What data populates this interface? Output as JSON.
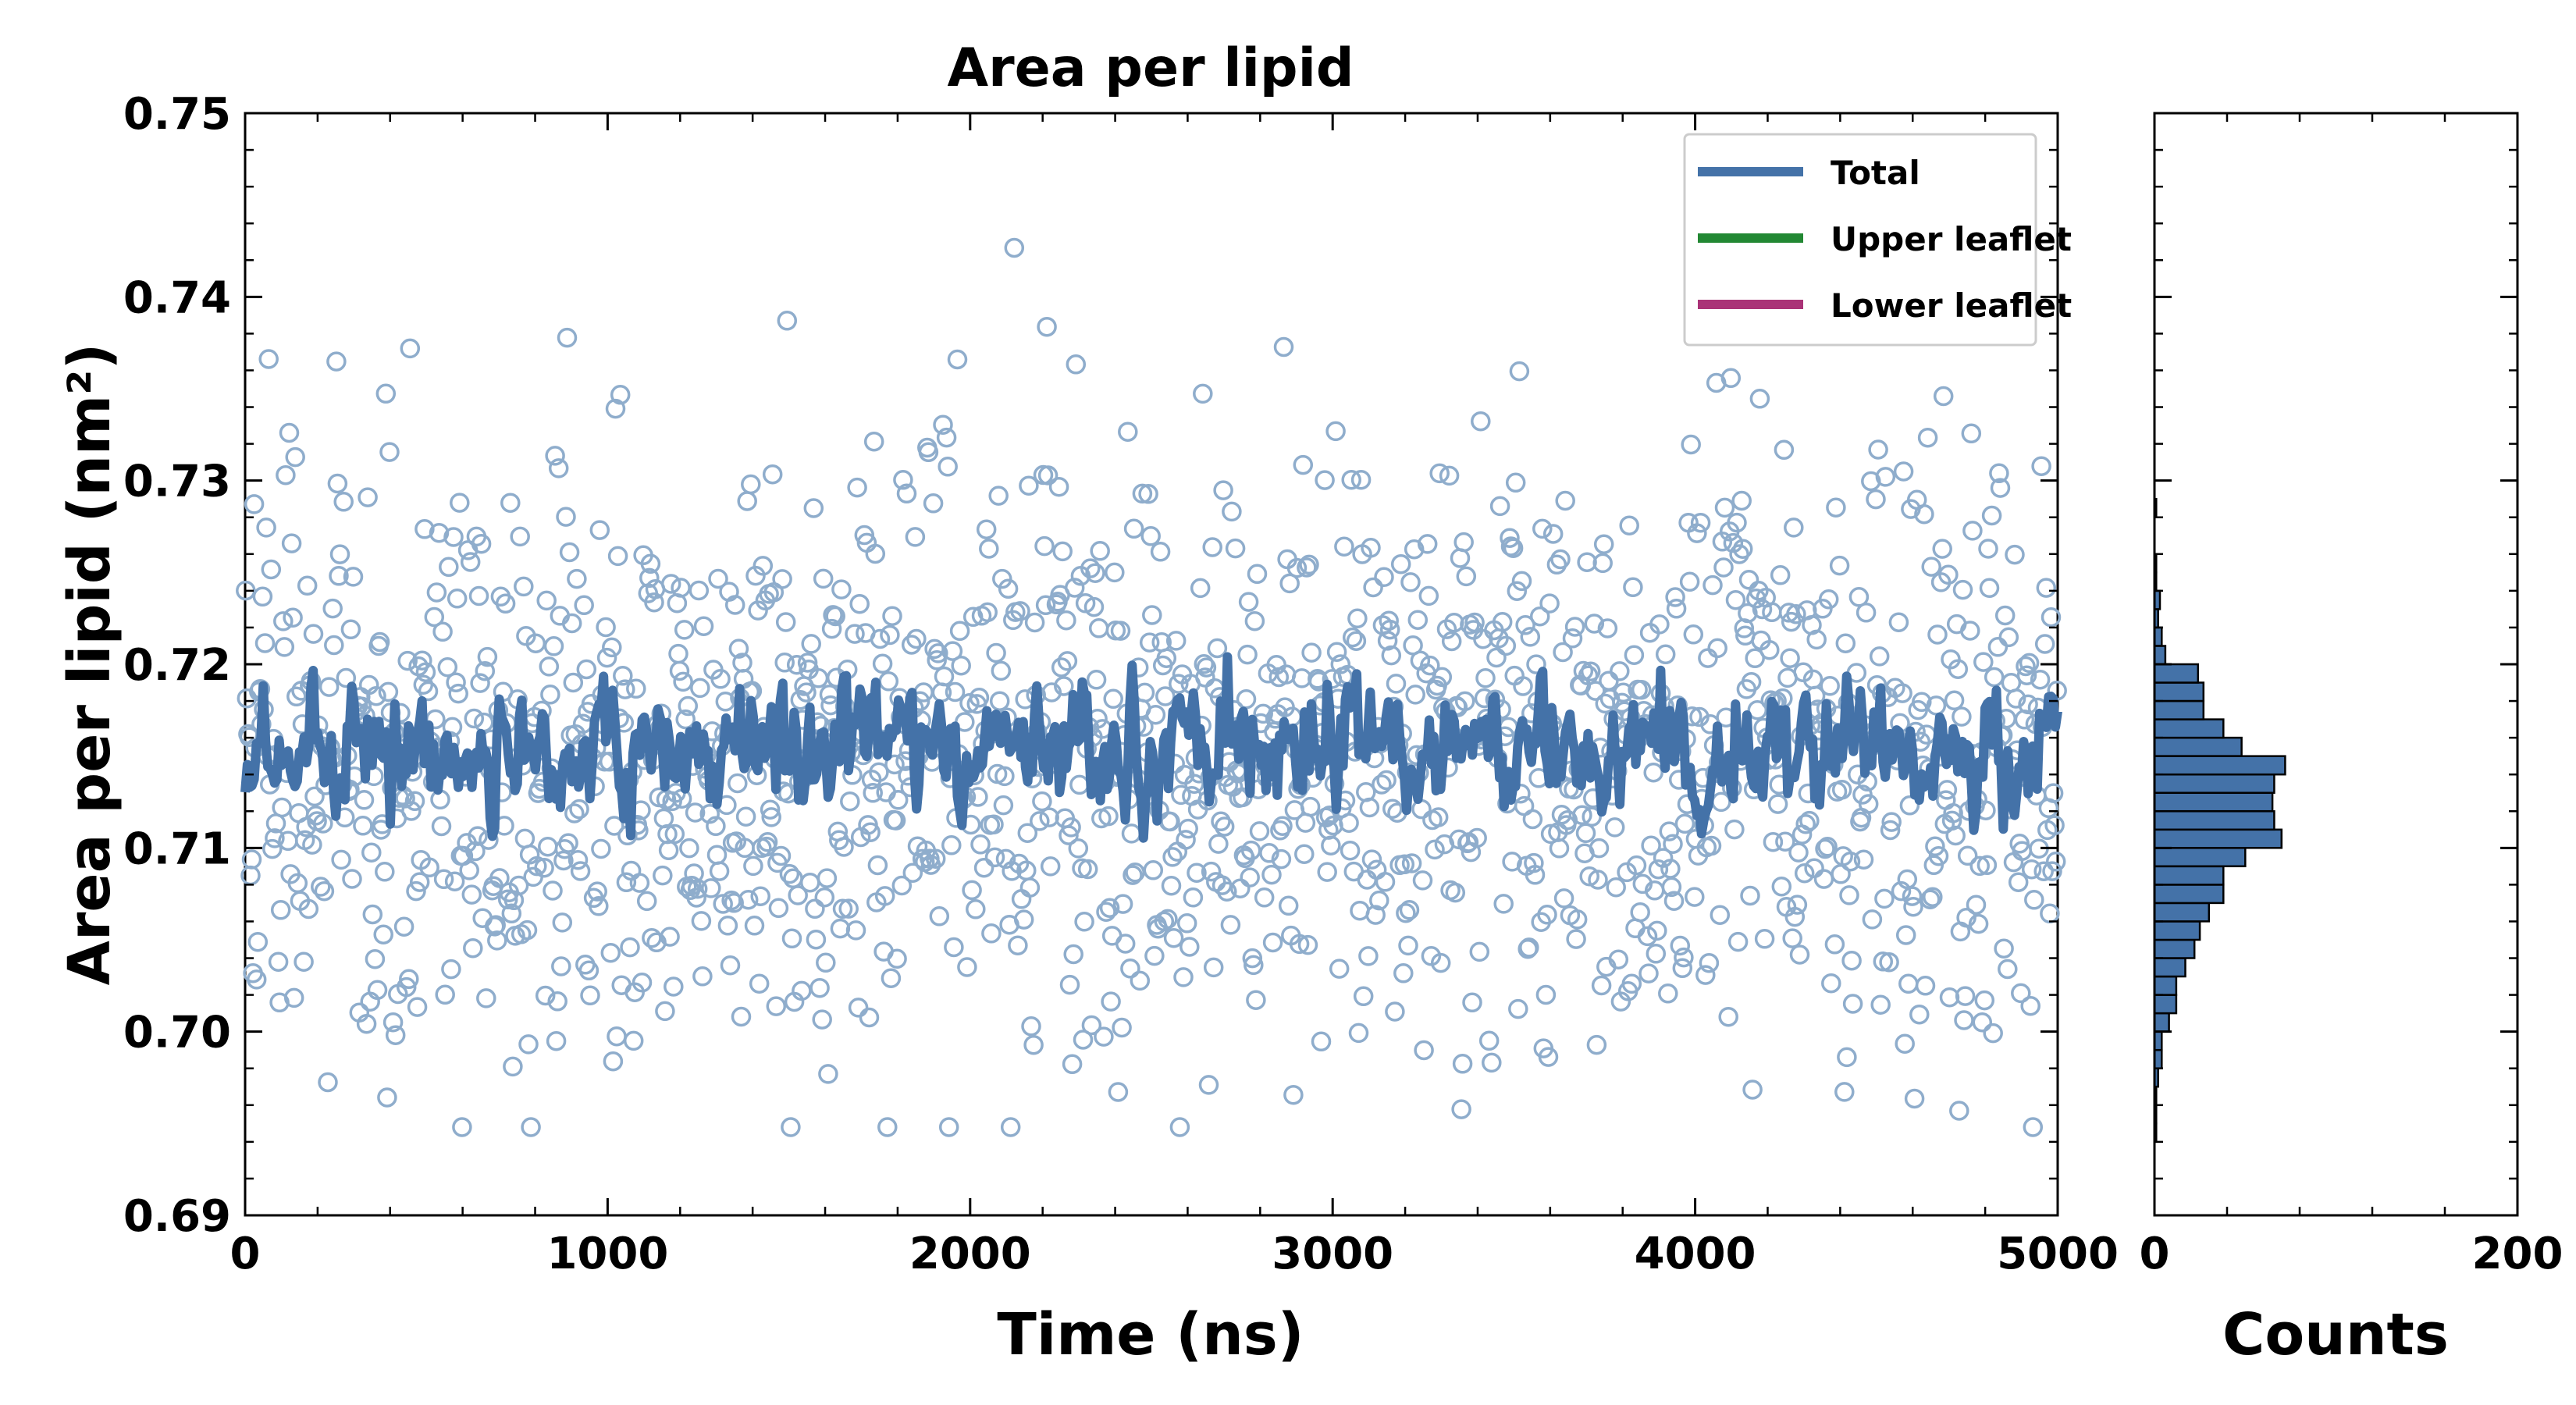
{
  "colors": {
    "total": "#4472a8",
    "upper": "#228833",
    "lower": "#aa3377",
    "scatter": "#8fadcc",
    "hist_fill": "#4472a8",
    "hist_edge": "#000000"
  },
  "chart_data": [
    {
      "type": "scatter",
      "title": "Area per lipid",
      "xlabel": "Time (ns)",
      "ylabel": "Area per lipid (nm²)",
      "xlim": [
        0,
        5000
      ],
      "ylim": [
        0.69,
        0.75
      ],
      "x_ticks": [
        "0",
        "1000",
        "2000",
        "3000",
        "4000",
        "5000"
      ],
      "y_ticks": [
        "0.69",
        "0.70",
        "0.71",
        "0.72",
        "0.73",
        "0.74",
        "0.75"
      ],
      "legend": {
        "placement": "top-right",
        "entries": [
          "Total",
          "Upper leaflet",
          "Lower leaflet"
        ]
      },
      "series": [
        {
          "name": "Total",
          "style": "line",
          "n_points": 800,
          "mean": 0.7155,
          "std": 0.0025,
          "min": 0.708,
          "max": 0.723
        },
        {
          "name": "scatter",
          "style": "open-circle",
          "n_points": 1500,
          "mean": 0.715,
          "std": 0.008,
          "min": 0.6948,
          "max": 0.7433
        }
      ]
    },
    {
      "type": "bar",
      "orientation": "horizontal",
      "xlabel": "Counts",
      "xlim": [
        0,
        200
      ],
      "x_ticks": [
        "0",
        "200"
      ],
      "ylim": [
        0.69,
        0.75
      ],
      "bin_edges_start": 0.694,
      "bin_width": 0.001,
      "counts": [
        1,
        1,
        1,
        2,
        4,
        4,
        8,
        12,
        12,
        17,
        22,
        25,
        30,
        38,
        38,
        50,
        70,
        66,
        65,
        66,
        72,
        48,
        38,
        27,
        27,
        24,
        6,
        4,
        2,
        3,
        1,
        1,
        0,
        0,
        1
      ]
    }
  ]
}
